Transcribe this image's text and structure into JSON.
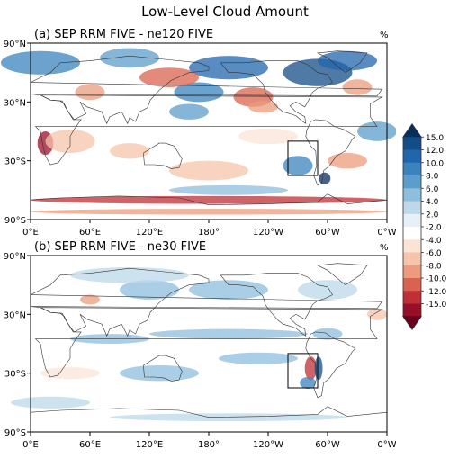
{
  "chart_data": {
    "type": "heatmap",
    "title": "Low-Level Cloud Amount",
    "units": "%",
    "colorbar": {
      "ticks": [
        "15.0",
        "12.0",
        "10.0",
        "8.0",
        "6.0",
        "4.0",
        "2.0",
        "-2.0",
        "-4.0",
        "-6.0",
        "-8.0",
        "-10.0",
        "-12.0",
        "-15.0"
      ],
      "colors": [
        "#0a2e5c",
        "#134d87",
        "#2166ac",
        "#3a83bd",
        "#5c9ecb",
        "#8dbedc",
        "#bcd8ea",
        "#e7f0f7",
        "#ffffff",
        "#fbe4d6",
        "#f5c4aa",
        "#ec9c7c",
        "#d9634f",
        "#bf2f35",
        "#970f29",
        "#67001f"
      ]
    },
    "panels": [
      {
        "label": "(a) SEP RRM FIVE - ne120 FIVE",
        "units": "%",
        "x_ticks": [
          "0°E",
          "60°E",
          "120°E",
          "180°",
          "120°W",
          "60°W",
          "0°W"
        ],
        "y_ticks": [
          "90°N",
          "30°N",
          "30°S",
          "90°S"
        ],
        "region_box": {
          "lon": [
            -100,
            -70
          ],
          "lat": [
            -45,
            -10
          ]
        }
      },
      {
        "label": "(b) SEP RRM FIVE - ne30 FIVE",
        "units": "%",
        "x_ticks": [
          "0°E",
          "60°E",
          "120°E",
          "180°",
          "120°W",
          "60°W",
          "0°W"
        ],
        "y_ticks": [
          "90°N",
          "30°N",
          "30°S",
          "90°S"
        ],
        "region_box": {
          "lon": [
            -100,
            -70
          ],
          "lat": [
            -45,
            -10
          ]
        }
      }
    ]
  }
}
